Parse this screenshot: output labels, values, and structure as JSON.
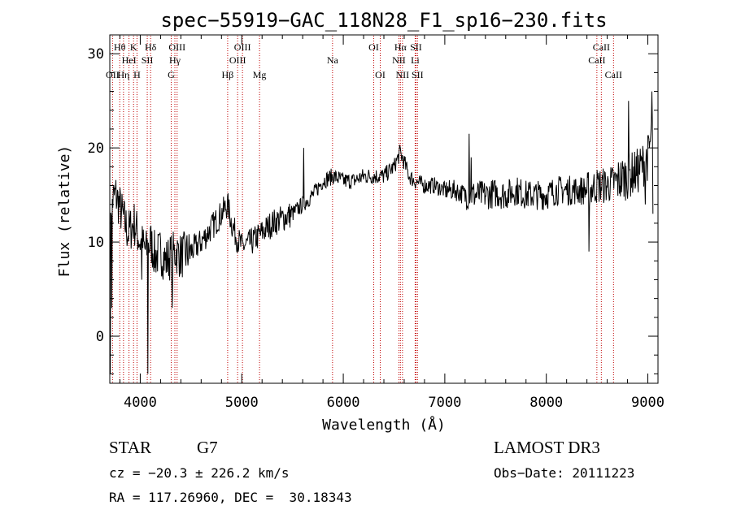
{
  "chart_data": {
    "type": "line",
    "title": "spec−55919−GAC_118N28_F1_sp16−230.fits",
    "xlabel": "Wavelength (Å)",
    "ylabel": "Flux (relative)",
    "xlim": [
      3700,
      9100
    ],
    "ylim": [
      -5,
      32
    ],
    "xticks": [
      4000,
      5000,
      6000,
      7000,
      8000,
      9000
    ],
    "xtick_labels": [
      "4000",
      "5000",
      "6000",
      "7000",
      "8000",
      "9000"
    ],
    "yticks": [
      0,
      10,
      20,
      30
    ],
    "ytick_labels": [
      "0",
      "10",
      "20",
      "30"
    ],
    "grid": false,
    "line_color": "#000000",
    "marker_color": "#c00000",
    "spectrum": {
      "x": [
        3700,
        3760,
        3820,
        3880,
        3940,
        4000,
        4060,
        4100,
        4150,
        4200,
        4250,
        4300,
        4350,
        4400,
        4500,
        4600,
        4700,
        4800,
        4860,
        4900,
        4950,
        5000,
        5100,
        5200,
        5300,
        5400,
        5500,
        5600,
        5700,
        5800,
        5900,
        6000,
        6100,
        6200,
        6300,
        6400,
        6500,
        6560,
        6600,
        6650,
        6700,
        6800,
        6900,
        7000,
        7100,
        7200,
        7300,
        7400,
        7500,
        7600,
        7700,
        7800,
        7900,
        8000,
        8100,
        8200,
        8300,
        8400,
        8500,
        8600,
        8700,
        8800,
        8900,
        9000,
        9050
      ],
      "y": [
        14,
        15,
        13,
        11,
        12,
        10,
        9,
        10,
        8.5,
        9,
        8,
        8.5,
        9,
        8.5,
        9,
        10,
        11.5,
        13,
        14,
        12,
        10.5,
        9.5,
        10,
        11,
        12,
        12.5,
        13,
        14,
        15,
        16.5,
        17,
        16.5,
        16.5,
        17,
        17,
        17,
        18,
        19.5,
        18.5,
        17,
        16.5,
        16,
        16,
        15.5,
        15.5,
        15,
        15,
        15,
        15.2,
        15,
        15.5,
        15,
        15,
        15,
        15.5,
        15.5,
        15.5,
        15.5,
        16,
        16,
        16.5,
        17,
        17.5,
        19,
        22
      ]
    },
    "spikes": [
      {
        "x": 3705,
        "y": -4
      },
      {
        "x": 3718,
        "y": 3
      },
      {
        "x": 4015,
        "y": 6
      },
      {
        "x": 4075,
        "y": -4
      },
      {
        "x": 4315,
        "y": 3
      },
      {
        "x": 5610,
        "y": 20
      },
      {
        "x": 7238,
        "y": 21.5
      },
      {
        "x": 7258,
        "y": 19
      },
      {
        "x": 8420,
        "y": 9
      },
      {
        "x": 8810,
        "y": 25
      },
      {
        "x": 8975,
        "y": 14
      },
      {
        "x": 9040,
        "y": 26
      },
      {
        "x": 9048,
        "y": 13
      }
    ],
    "lines": [
      {
        "label": "OII",
        "x": 3727,
        "row": 3
      },
      {
        "label": "Hθ",
        "x": 3798,
        "row": 1
      },
      {
        "label": "Hη",
        "x": 3835,
        "row": 3
      },
      {
        "label": "HeI",
        "x": 3889,
        "row": 2
      },
      {
        "label": "K",
        "x": 3934,
        "row": 1
      },
      {
        "label": "H",
        "x": 3968,
        "row": 3
      },
      {
        "label": "SII",
        "x": 4069,
        "row": 2
      },
      {
        "label": "Hδ",
        "x": 4102,
        "row": 1
      },
      {
        "label": "G",
        "x": 4305,
        "row": 3
      },
      {
        "label": "Hγ",
        "x": 4341,
        "row": 2
      },
      {
        "label": "OIII",
        "x": 4363,
        "row": 1
      },
      {
        "label": "Hβ",
        "x": 4861,
        "row": 3
      },
      {
        "label": "OIII",
        "x": 4959,
        "row": 2
      },
      {
        "label": "OIII",
        "x": 5007,
        "row": 1
      },
      {
        "label": "Mg",
        "x": 5175,
        "row": 3
      },
      {
        "label": "Na",
        "x": 5894,
        "row": 2
      },
      {
        "label": "OI",
        "x": 6300,
        "row": 1
      },
      {
        "label": "OI",
        "x": 6364,
        "row": 3
      },
      {
        "label": "NII",
        "x": 6548,
        "row": 2
      },
      {
        "label": "Hα",
        "x": 6563,
        "row": 1
      },
      {
        "label": "NII",
        "x": 6583,
        "row": 3
      },
      {
        "label": "Li",
        "x": 6708,
        "row": 2
      },
      {
        "label": "SII",
        "x": 6716,
        "row": 1
      },
      {
        "label": "SII",
        "x": 6731,
        "row": 3
      },
      {
        "label": "CaII",
        "x": 8498,
        "row": 2
      },
      {
        "label": "CaII",
        "x": 8542,
        "row": 1
      },
      {
        "label": "CaII",
        "x": 8662,
        "row": 3
      }
    ]
  },
  "info": {
    "object_class": "STAR",
    "subclass": "G7",
    "survey": "LAMOST DR3",
    "redshift": "cz = −20.3 ± 226.2 km/s",
    "obs_date": "Obs−Date: 20111223",
    "coords": "RA = 117.26960, DEC =  30.18343"
  }
}
